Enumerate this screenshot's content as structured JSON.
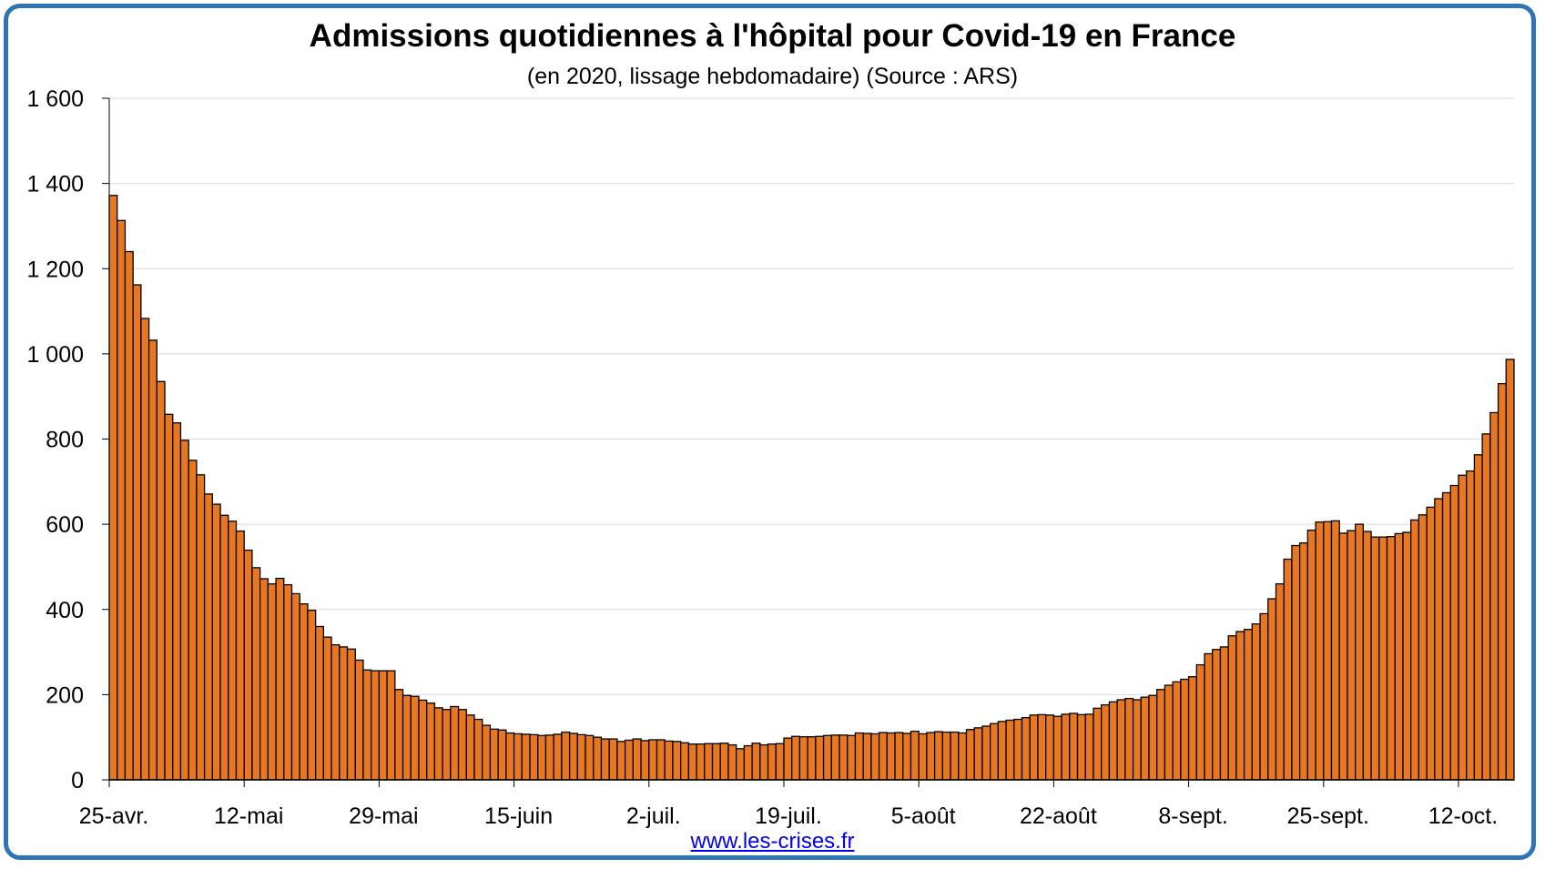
{
  "chart_data": {
    "type": "bar",
    "title": "Admissions quotidiennes à l'hôpital pour Covid-19 en France",
    "subtitle": "(en 2020, lissage hebdomadaire) (Source : ARS)",
    "xlabel": "",
    "ylabel": "",
    "ylim": [
      0,
      1600
    ],
    "yticks": [
      0,
      200,
      400,
      600,
      800,
      1000,
      1200,
      1400,
      1600
    ],
    "ytick_labels": [
      "0",
      "200",
      "400",
      "600",
      "800",
      "1 000",
      "1 200",
      "1 400",
      "1 600"
    ],
    "xtick_labels": [
      "25-avr.",
      "12-mai",
      "29-mai",
      "15-juin",
      "2-juil.",
      "19-juil.",
      "5-août",
      "22-août",
      "8-sept.",
      "25-sept.",
      "12-oct."
    ],
    "xtick_every": 17,
    "grid": true,
    "bar_color": "#e87722",
    "bar_edge_color": "#000000",
    "values": [
      1372,
      1313,
      1240,
      1162,
      1083,
      1032,
      935,
      858,
      838,
      797,
      750,
      716,
      671,
      647,
      621,
      607,
      584,
      539,
      498,
      472,
      460,
      473,
      458,
      437,
      413,
      398,
      360,
      335,
      317,
      312,
      307,
      281,
      258,
      256,
      256,
      256,
      212,
      198,
      196,
      187,
      180,
      169,
      165,
      172,
      165,
      152,
      142,
      128,
      119,
      117,
      110,
      108,
      107,
      106,
      104,
      105,
      107,
      112,
      109,
      106,
      104,
      100,
      96,
      96,
      90,
      93,
      96,
      92,
      94,
      94,
      91,
      90,
      87,
      84,
      84,
      85,
      85,
      86,
      82,
      73,
      80,
      86,
      82,
      84,
      85,
      98,
      102,
      101,
      101,
      102,
      104,
      105,
      105,
      104,
      110,
      109,
      108,
      111,
      110,
      111,
      109,
      114,
      108,
      111,
      113,
      112,
      112,
      110,
      118,
      122,
      126,
      132,
      137,
      140,
      142,
      146,
      152,
      153,
      152,
      149,
      154,
      156,
      153,
      154,
      168,
      176,
      183,
      188,
      191,
      188,
      194,
      198,
      212,
      222,
      230,
      236,
      242,
      270,
      296,
      306,
      312,
      338,
      348,
      353,
      366,
      390,
      425,
      460,
      518,
      550,
      556,
      586,
      605,
      606,
      608,
      579,
      585,
      600,
      583,
      570,
      570,
      571,
      578,
      581,
      610,
      622,
      640,
      660,
      674,
      691,
      715,
      725,
      763,
      812,
      862,
      930,
      987
    ]
  },
  "footer": {
    "source_link": "www.les-crises.fr"
  }
}
